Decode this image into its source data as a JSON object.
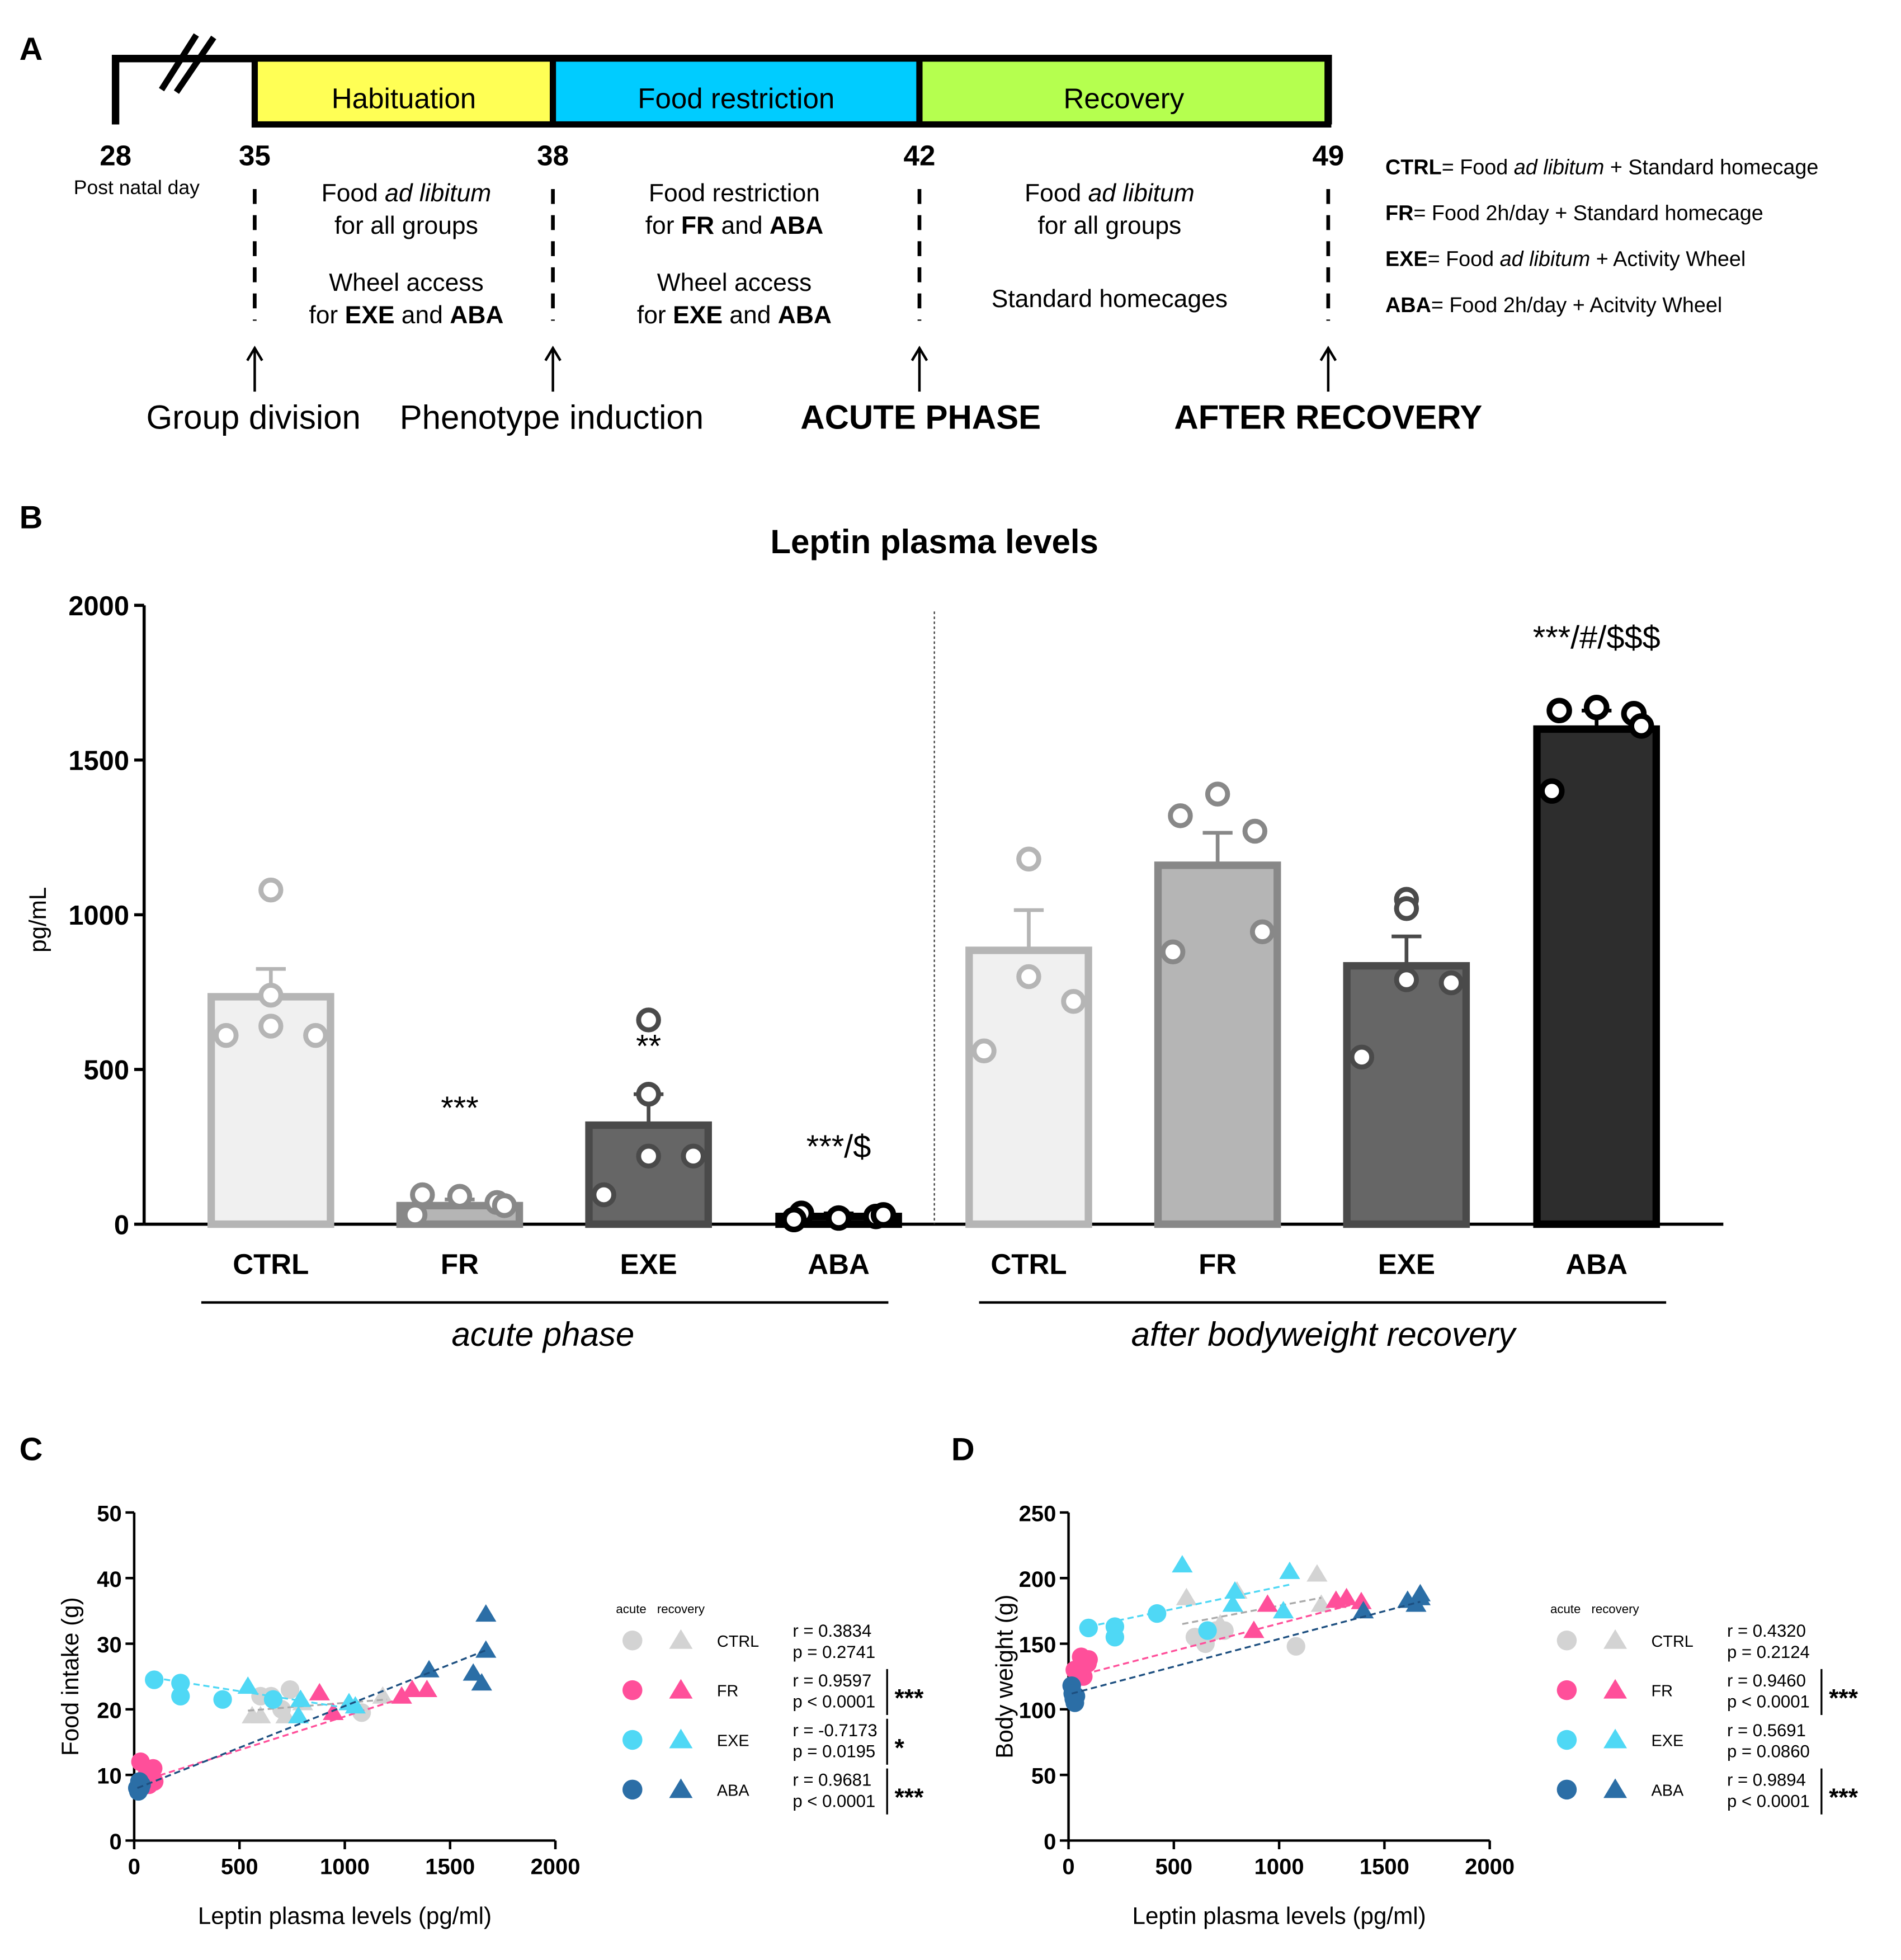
{
  "panel_labels": [
    "A",
    "B",
    "C",
    "D"
  ],
  "timeline": {
    "phases": [
      {
        "label": "Habituation",
        "color": "#ffff55"
      },
      {
        "label": "Food restriction",
        "color": "#00ccff"
      },
      {
        "label": "Recovery",
        "color": "#b5ff4f"
      }
    ],
    "days": [
      "28",
      "35",
      "38",
      "42",
      "49"
    ],
    "day_caption": "Post natal day",
    "descriptions": [
      [
        "Food ad libitum",
        "for all groups",
        "Wheel access",
        "for EXE and ABA"
      ],
      [
        "Food restriction",
        "for FR and ABA",
        "Wheel access",
        "for EXE and ABA"
      ],
      [
        "Food ad libitum",
        "for all groups",
        "Standard homecages"
      ]
    ],
    "events": [
      "Group division",
      "Phenotype induction",
      "ACUTE PHASE",
      "AFTER RECOVERY"
    ],
    "group_definitions": [
      {
        "group": "CTRL",
        "text": "= Food ad libitum + Standard homecage"
      },
      {
        "group": "FR",
        "text": "= Food 2h/day + Standard homecage"
      },
      {
        "group": "EXE",
        "text": "= Food ad libitum + Activity Wheel"
      },
      {
        "group": "ABA",
        "text": "= Food 2h/day + Acitvity Wheel"
      }
    ]
  },
  "colors": {
    "CTRL": "#d3d3d3",
    "FR": "#ff4f9a",
    "EXE": "#4fd8f5",
    "ABA": "#2b6ea6"
  },
  "chart_data": [
    {
      "type": "bar",
      "title": "Leptin plasma levels",
      "ylabel": "pg/mL",
      "ylim": [
        0,
        2000
      ],
      "yticks": [
        0,
        500,
        1000,
        1500,
        2000
      ],
      "categories": [
        "CTRL",
        "FR",
        "EXE",
        "ABA",
        "CTRL",
        "FR",
        "EXE",
        "ABA"
      ],
      "phases": [
        "acute phase",
        "after bodyweight recovery"
      ],
      "values": [
        735,
        60,
        320,
        25,
        885,
        1160,
        835,
        1600
      ],
      "sem_upper": [
        825,
        80,
        420,
        35,
        1015,
        1265,
        930,
        1660
      ],
      "points": [
        [
          1080,
          740,
          640,
          610,
          610
        ],
        [
          90,
          95,
          70,
          60,
          30
        ],
        [
          660,
          420,
          220,
          220,
          95
        ],
        [
          20,
          35,
          25,
          30,
          15
        ],
        [
          1180,
          1180,
          800,
          720,
          560
        ],
        [
          1390,
          1320,
          1270,
          945,
          880
        ],
        [
          1050,
          1020,
          790,
          780,
          540
        ],
        [
          1670,
          1660,
          1650,
          1610,
          1400
        ]
      ],
      "annotations": [
        "",
        "***",
        "**",
        "***/$",
        "",
        "",
        "",
        "***/#/$$$"
      ]
    },
    {
      "type": "scatter",
      "xlabel": "Leptin plasma levels (pg/ml)",
      "ylabel": "Food intake (g)",
      "xlim": [
        0,
        2000
      ],
      "ylim": [
        0,
        50
      ],
      "xticks": [
        0,
        500,
        1000,
        1500,
        2000
      ],
      "yticks": [
        0,
        10,
        20,
        30,
        40,
        50
      ],
      "legend_header": [
        "acute",
        "recovery"
      ],
      "series": [
        {
          "name": "CTRL",
          "acute": [
            [
              600,
              22
            ],
            [
              650,
              22
            ],
            [
              740,
              23
            ],
            [
              700,
              20
            ],
            [
              1080,
              19.5
            ]
          ],
          "recovery": [
            [
              560,
              19
            ],
            [
              600,
              19
            ],
            [
              720,
              19
            ],
            [
              800,
              21
            ],
            [
              1180,
              22
            ]
          ],
          "fit": [
            [
              540,
              19.8
            ],
            [
              1200,
              21.5
            ]
          ],
          "r": "r = 0.3834",
          "p": "p = 0.2741",
          "sig": ""
        },
        {
          "name": "FR",
          "acute": [
            [
              30,
              12
            ],
            [
              60,
              10
            ],
            [
              90,
              11
            ],
            [
              95,
              9
            ],
            [
              70,
              8.5
            ]
          ],
          "recovery": [
            [
              880,
              22.5
            ],
            [
              945,
              19.5
            ],
            [
              1270,
              22
            ],
            [
              1320,
              23
            ],
            [
              1390,
              23
            ]
          ],
          "fit": [
            [
              30,
              9
            ],
            [
              1400,
              23
            ]
          ],
          "r": "r = 0.9597",
          "p": "p < 0.0001",
          "sig": "***"
        },
        {
          "name": "EXE",
          "acute": [
            [
              95,
              24.5
            ],
            [
              220,
              24
            ],
            [
              220,
              22
            ],
            [
              420,
              21.5
            ],
            [
              660,
              21.5
            ]
          ],
          "recovery": [
            [
              540,
              23.5
            ],
            [
              780,
              19
            ],
            [
              790,
              21.5
            ],
            [
              1020,
              21
            ],
            [
              1050,
              20.5
            ]
          ],
          "fit": [
            [
              95,
              24.8
            ],
            [
              1050,
              20
            ]
          ],
          "r": "r = -0.7173",
          "p": "p = 0.0195",
          "sig": "*"
        },
        {
          "name": "ABA",
          "acute": [
            [
              15,
              8
            ],
            [
              20,
              7.5
            ],
            [
              25,
              9
            ],
            [
              30,
              8
            ],
            [
              35,
              8.5
            ]
          ],
          "recovery": [
            [
              1400,
              26
            ],
            [
              1610,
              25.5
            ],
            [
              1650,
              24
            ],
            [
              1670,
              29
            ],
            [
              1670,
              34.5
            ]
          ],
          "fit": [
            [
              15,
              8
            ],
            [
              1670,
              29
            ]
          ],
          "r": "r = 0.9681",
          "p": "p < 0.0001",
          "sig": "***"
        }
      ]
    },
    {
      "type": "scatter",
      "xlabel": "Leptin plasma levels (pg/ml)",
      "ylabel": "Body weight (g)",
      "xlim": [
        0,
        2000
      ],
      "ylim": [
        0,
        250
      ],
      "xticks": [
        0,
        500,
        1000,
        1500,
        2000
      ],
      "yticks": [
        0,
        50,
        100,
        150,
        200,
        250
      ],
      "legend_header": [
        "acute",
        "recovery"
      ],
      "series": [
        {
          "name": "CTRL",
          "acute": [
            [
              600,
              155
            ],
            [
              650,
              150
            ],
            [
              700,
              160
            ],
            [
              740,
              160
            ],
            [
              1080,
              148
            ]
          ],
          "recovery": [
            [
              560,
              185
            ],
            [
              800,
              190
            ],
            [
              720,
              165
            ],
            [
              1180,
              203
            ],
            [
              1200,
              180
            ]
          ],
          "fit": [
            [
              540,
              165
            ],
            [
              1200,
              185
            ]
          ],
          "r": "r = 0.4320",
          "p": "p = 0.2124",
          "sig": ""
        },
        {
          "name": "FR",
          "acute": [
            [
              30,
              130
            ],
            [
              60,
              140
            ],
            [
              90,
              135
            ],
            [
              95,
              138
            ],
            [
              70,
              125
            ]
          ],
          "recovery": [
            [
              880,
              160
            ],
            [
              945,
              180
            ],
            [
              1270,
              183
            ],
            [
              1320,
              185
            ],
            [
              1390,
              182
            ]
          ],
          "fit": [
            [
              30,
              125
            ],
            [
              1400,
              182
            ]
          ],
          "r": "r = 0.9460",
          "p": "p < 0.0001",
          "sig": "***"
        },
        {
          "name": "EXE",
          "acute": [
            [
              95,
              162
            ],
            [
              220,
              163
            ],
            [
              220,
              155
            ],
            [
              420,
              173
            ],
            [
              660,
              160
            ]
          ],
          "recovery": [
            [
              540,
              210
            ],
            [
              780,
              180
            ],
            [
              790,
              190
            ],
            [
              1020,
              175
            ],
            [
              1050,
              205
            ]
          ],
          "fit": [
            [
              95,
              163
            ],
            [
              1050,
              195
            ]
          ],
          "r": "r = 0.5691",
          "p": "p = 0.0860",
          "sig": ""
        },
        {
          "name": "ABA",
          "acute": [
            [
              15,
              118
            ],
            [
              20,
              112
            ],
            [
              25,
              108
            ],
            [
              30,
              105
            ],
            [
              35,
              110
            ]
          ],
          "recovery": [
            [
              1400,
              175
            ],
            [
              1610,
              183
            ],
            [
              1650,
              180
            ],
            [
              1670,
              188
            ],
            [
              1670,
              185
            ]
          ],
          "fit": [
            [
              15,
              112
            ],
            [
              1670,
              182
            ]
          ],
          "r": "r = 0.9894",
          "p": "p < 0.0001",
          "sig": "***"
        }
      ]
    }
  ]
}
